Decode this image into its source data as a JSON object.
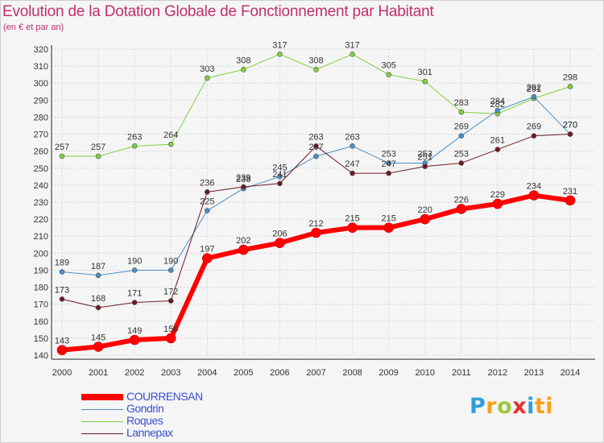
{
  "chart_data": {
    "type": "line",
    "title": "Evolution de la Dotation Globale de Fonctionnement par Habitant",
    "subtitle": "(en € et par an)",
    "xlabel": "",
    "ylabel": "",
    "categories": [
      "2000",
      "2001",
      "2002",
      "2003",
      "2004",
      "2005",
      "2006",
      "2007",
      "2008",
      "2009",
      "2010",
      "2011",
      "2012",
      "2013",
      "2014"
    ],
    "ylim": [
      140,
      320
    ],
    "ytick_step": 10,
    "grid": true,
    "legend_position": "bottom-left",
    "series": [
      {
        "name": "Roques",
        "color": "#7fd13b",
        "width": 1,
        "values": [
          257,
          257,
          263,
          264,
          303,
          308,
          317,
          308,
          317,
          305,
          301,
          283,
          282,
          291,
          298
        ]
      },
      {
        "name": "Gondrin",
        "color": "#4a8fc8",
        "width": 1,
        "values": [
          189,
          187,
          190,
          190,
          225,
          238,
          245,
          257,
          263,
          253,
          253,
          269,
          284,
          292,
          270
        ]
      },
      {
        "name": "Lannepax",
        "color": "#6b1a22",
        "width": 1,
        "values": [
          173,
          168,
          171,
          172,
          236,
          239,
          241,
          263,
          247,
          247,
          251,
          253,
          261,
          269,
          270
        ]
      },
      {
        "name": "COURRENSAN",
        "color": "#ff0000",
        "width": 6,
        "values": [
          143,
          145,
          149,
          150,
          197,
          202,
          206,
          212,
          215,
          215,
          220,
          226,
          229,
          234,
          231
        ]
      }
    ],
    "legend_order": [
      "COURRENSAN",
      "Gondrin",
      "Roques",
      "Lannepax"
    ]
  },
  "logo": {
    "letters": [
      "P",
      "r",
      "o",
      "x",
      "i",
      "ti"
    ]
  }
}
